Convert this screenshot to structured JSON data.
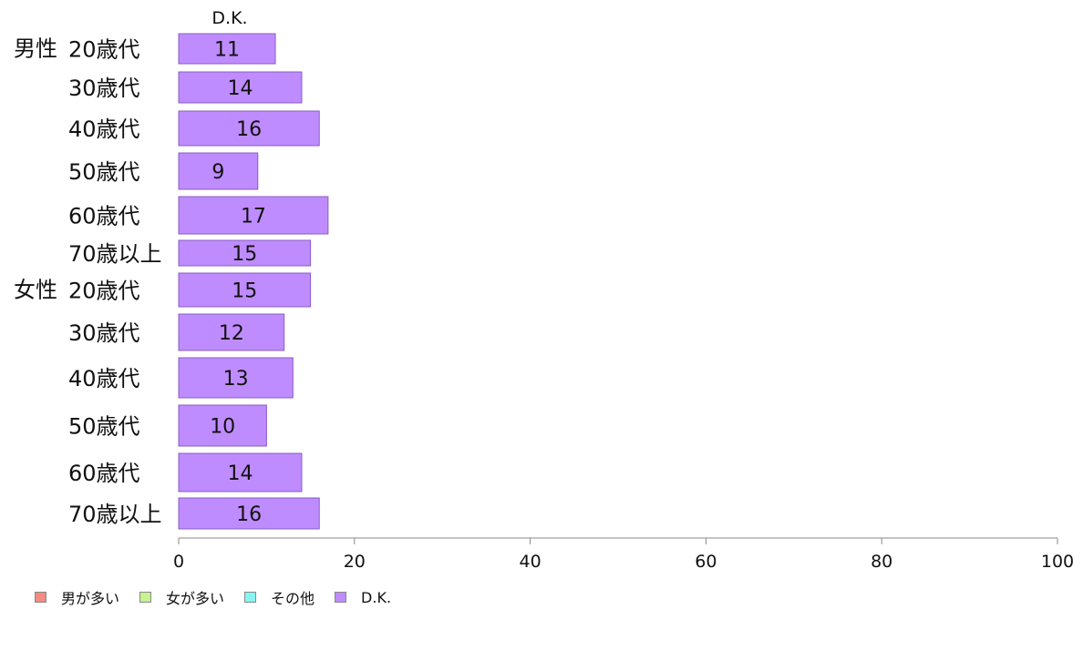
{
  "chart_data": {
    "type": "bar",
    "orientation": "horizontal",
    "stacked": true,
    "top_label": "D.K.",
    "groups": [
      {
        "label": "男性",
        "first_category_index": 0
      },
      {
        "label": "女性",
        "first_category_index": 6
      }
    ],
    "categories": [
      "20歳代",
      "30歳代",
      "40歳代",
      "50歳代",
      "60歳代",
      "70歳以上",
      "20歳代",
      "30歳代",
      "40歳代",
      "50歳代",
      "60歳代",
      "70歳以上"
    ],
    "series": [
      {
        "name": "男が多い",
        "color": "#f28b82",
        "values": [
          0,
          0,
          0,
          0,
          0,
          0,
          0,
          0,
          0,
          0,
          0,
          0
        ]
      },
      {
        "name": "女が多い",
        "color": "#c6f28f",
        "values": [
          0,
          0,
          0,
          0,
          0,
          0,
          0,
          0,
          0,
          0,
          0,
          0
        ]
      },
      {
        "name": "その他",
        "color": "#86f5f2",
        "values": [
          0,
          0,
          0,
          0,
          0,
          0,
          0,
          0,
          0,
          0,
          0,
          0
        ]
      },
      {
        "name": "D.K.",
        "color": "#bf8cff",
        "values": [
          11,
          14,
          16,
          9,
          17,
          15,
          15,
          12,
          13,
          10,
          14,
          16
        ]
      }
    ],
    "xlim": [
      0,
      100
    ],
    "xticks": [
      0,
      20,
      40,
      60,
      80,
      100
    ],
    "grid": false,
    "legend_position": "bottom-left"
  }
}
